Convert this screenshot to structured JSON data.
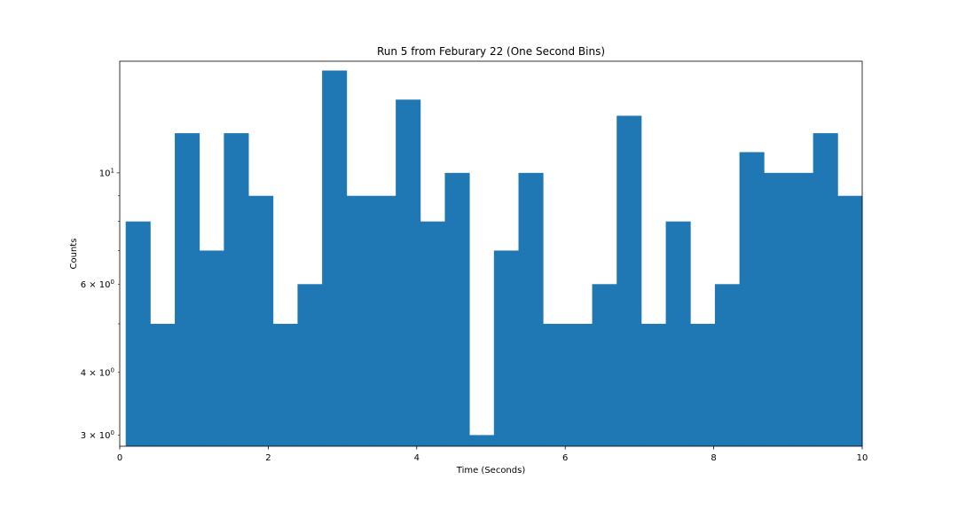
{
  "chart_data": {
    "type": "bar",
    "title": "Run 5 from Feburary 22 (One Second Bins)",
    "xlabel": "Time (Seconds)",
    "ylabel": "Counts",
    "y_scale": "log",
    "xlim": [
      0,
      10
    ],
    "ylim": [
      2.85,
      16.7
    ],
    "grid": false,
    "bar_color": "#1f77b4",
    "bins": {
      "start": 0.08,
      "end": 10.0,
      "count": 30
    },
    "values": [
      8,
      5,
      12,
      7,
      12,
      9,
      5,
      6,
      16,
      9,
      9,
      14,
      8,
      10,
      3,
      7,
      10,
      5,
      5,
      6,
      13,
      5,
      8,
      5,
      6,
      11,
      10,
      10,
      12,
      9
    ],
    "x_ticks": [
      {
        "value": 0,
        "label": "0"
      },
      {
        "value": 2,
        "label": "2"
      },
      {
        "value": 4,
        "label": "4"
      },
      {
        "value": 6,
        "label": "6"
      },
      {
        "value": 8,
        "label": "8"
      },
      {
        "value": 10,
        "label": "10"
      }
    ],
    "y_major_ticks": [
      {
        "value": 10,
        "base": "10",
        "exp": "1"
      }
    ],
    "y_minor_ticks": [
      {
        "value": 3,
        "base": "3 × 10",
        "exp": "0"
      },
      {
        "value": 4,
        "base": "4 × 10",
        "exp": "0"
      },
      {
        "value": 5,
        "base": "",
        "exp": ""
      },
      {
        "value": 6,
        "base": "6 × 10",
        "exp": "0"
      },
      {
        "value": 7,
        "base": "",
        "exp": ""
      },
      {
        "value": 8,
        "base": "",
        "exp": ""
      },
      {
        "value": 9,
        "base": "",
        "exp": ""
      }
    ]
  }
}
